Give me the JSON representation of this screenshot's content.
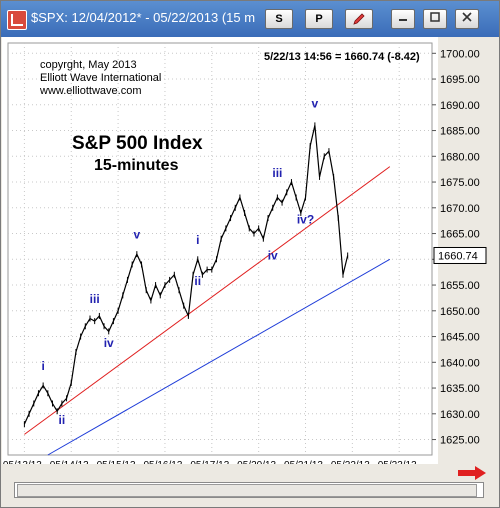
{
  "window": {
    "title": "$SPX:  12/04/2012* - 05/22/2013   (15 m",
    "toolbar_buttons": [
      "S",
      "P"
    ],
    "accent_color": "#3a6cb8"
  },
  "annotations": {
    "copyright_lines": [
      "copyrght, May 2013",
      "Elliott Wave International",
      "www.elliottwave.com"
    ],
    "title": "S&P 500 Index",
    "subtitle": "15-minutes",
    "readout": "5/22/13 14:56 = 1660.74 (-8.42)"
  },
  "chart_data": {
    "type": "line",
    "title": "S&P 500 Index",
    "subtitle": "15-minutes",
    "x_labels": [
      "05/13/13",
      "05/14/13",
      "05/15/13",
      "05/16/13",
      "05/17/13",
      "05/20/13",
      "05/21/13",
      "05/22/13",
      "05/23/13"
    ],
    "y_ticks": [
      1625,
      1630,
      1635,
      1640,
      1645,
      1650,
      1655,
      1660,
      1665,
      1670,
      1675,
      1680,
      1685,
      1690,
      1695,
      1700
    ],
    "ylim": [
      1622,
      1702
    ],
    "last_price_label": "1660.74",
    "grid": "dotted",
    "series": [
      {
        "color": "#000000",
        "points": [
          [
            0.0,
            1628
          ],
          [
            0.1,
            1630
          ],
          [
            0.2,
            1632
          ],
          [
            0.3,
            1634
          ],
          [
            0.4,
            1635.5
          ],
          [
            0.5,
            1634
          ],
          [
            0.6,
            1632
          ],
          [
            0.7,
            1630.5
          ],
          [
            0.8,
            1632
          ],
          [
            0.9,
            1633
          ],
          [
            1.0,
            1636
          ],
          [
            1.1,
            1642
          ],
          [
            1.2,
            1645
          ],
          [
            1.3,
            1647
          ],
          [
            1.4,
            1648.5
          ],
          [
            1.5,
            1648
          ],
          [
            1.6,
            1649
          ],
          [
            1.7,
            1647
          ],
          [
            1.8,
            1646
          ],
          [
            1.9,
            1648
          ],
          [
            2.0,
            1650
          ],
          [
            2.1,
            1653
          ],
          [
            2.2,
            1656
          ],
          [
            2.3,
            1659
          ],
          [
            2.4,
            1661
          ],
          [
            2.5,
            1659
          ],
          [
            2.6,
            1654
          ],
          [
            2.7,
            1652
          ],
          [
            2.8,
            1655
          ],
          [
            2.9,
            1653
          ],
          [
            3.0,
            1655
          ],
          [
            3.1,
            1656
          ],
          [
            3.2,
            1657
          ],
          [
            3.3,
            1654
          ],
          [
            3.4,
            1651
          ],
          [
            3.5,
            1649
          ],
          [
            3.6,
            1657
          ],
          [
            3.7,
            1660
          ],
          [
            3.8,
            1657
          ],
          [
            3.9,
            1658
          ],
          [
            4.0,
            1658
          ],
          [
            4.1,
            1660
          ],
          [
            4.2,
            1664
          ],
          [
            4.3,
            1666
          ],
          [
            4.4,
            1668
          ],
          [
            4.5,
            1670
          ],
          [
            4.6,
            1672
          ],
          [
            4.7,
            1669
          ],
          [
            4.8,
            1666
          ],
          [
            4.9,
            1665
          ],
          [
            5.0,
            1666
          ],
          [
            5.1,
            1664
          ],
          [
            5.2,
            1668
          ],
          [
            5.3,
            1670
          ],
          [
            5.4,
            1672
          ],
          [
            5.5,
            1671
          ],
          [
            5.6,
            1673
          ],
          [
            5.7,
            1675
          ],
          [
            5.8,
            1672
          ],
          [
            5.9,
            1669
          ],
          [
            6.0,
            1672
          ],
          [
            6.1,
            1682
          ],
          [
            6.2,
            1686
          ],
          [
            6.3,
            1676
          ],
          [
            6.4,
            1680
          ],
          [
            6.5,
            1681
          ],
          [
            6.6,
            1676
          ],
          [
            6.7,
            1668
          ],
          [
            6.8,
            1657
          ],
          [
            6.9,
            1660.74
          ]
        ]
      }
    ],
    "trendlines": [
      {
        "color": "#e02020",
        "from": [
          0.0,
          1626
        ],
        "to": [
          7.8,
          1678
        ]
      },
      {
        "color": "#1e3cd8",
        "from": [
          0.5,
          1622
        ],
        "to": [
          7.8,
          1660
        ]
      }
    ],
    "wave_labels": [
      {
        "text": "i",
        "x": 0.4,
        "y": 1638.5
      },
      {
        "text": "ii",
        "x": 0.8,
        "y": 1628
      },
      {
        "text": "iii",
        "x": 1.5,
        "y": 1651.5
      },
      {
        "text": "iv",
        "x": 1.8,
        "y": 1643
      },
      {
        "text": "v",
        "x": 2.4,
        "y": 1664
      },
      {
        "text": "i",
        "x": 3.7,
        "y": 1663
      },
      {
        "text": "ii",
        "x": 3.7,
        "y": 1655
      },
      {
        "text": "iii",
        "x": 5.4,
        "y": 1676
      },
      {
        "text": "iv",
        "x": 5.3,
        "y": 1660
      },
      {
        "text": "v",
        "x": 6.2,
        "y": 1689.5
      },
      {
        "text": "iv?",
        "x": 6.0,
        "y": 1667
      }
    ]
  }
}
